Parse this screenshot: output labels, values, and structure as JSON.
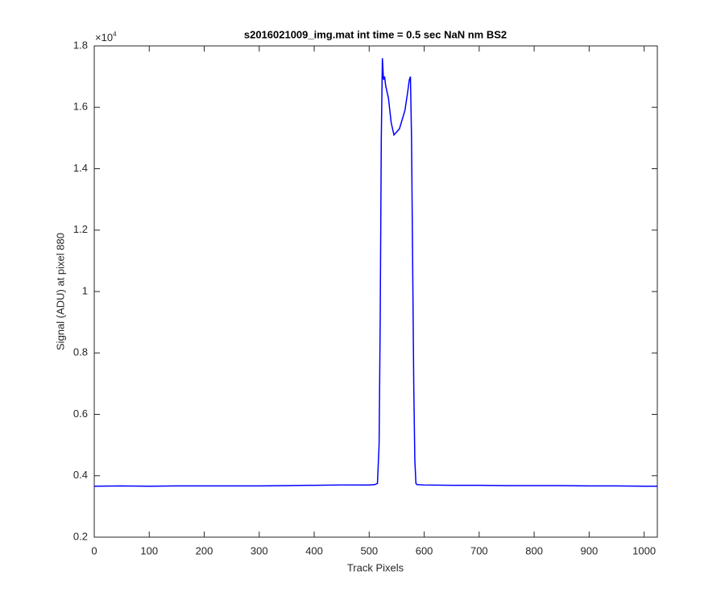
{
  "chart_data": {
    "type": "line",
    "title": "s2016021009_img.mat int time = 0.5 sec  NaN nm BS2",
    "xlabel": "Track Pixels",
    "ylabel": "Signal (ADU) at pixel 880",
    "y_multiplier": {
      "base": "×10",
      "exponent": "4"
    },
    "color": "#0000ff",
    "x": [
      0,
      50,
      100,
      150,
      200,
      250,
      300,
      350,
      400,
      450,
      500,
      510,
      515,
      518,
      520,
      522,
      524,
      526,
      528,
      530,
      535,
      540,
      545,
      550,
      555,
      560,
      565,
      570,
      573,
      575,
      577,
      579,
      581,
      583,
      585,
      587,
      600,
      650,
      700,
      750,
      800,
      850,
      900,
      950,
      1000,
      1024
    ],
    "values": [
      3660,
      3670,
      3660,
      3670,
      3670,
      3670,
      3670,
      3680,
      3690,
      3700,
      3700,
      3710,
      3750,
      5000,
      9000,
      15000,
      17600,
      16900,
      17000,
      16700,
      16300,
      15500,
      15100,
      15200,
      15300,
      15600,
      15900,
      16500,
      16900,
      17000,
      15000,
      11000,
      7000,
      4500,
      3750,
      3710,
      3700,
      3690,
      3690,
      3680,
      3680,
      3680,
      3670,
      3670,
      3660,
      3660
    ],
    "xlim": [
      0,
      1024
    ],
    "ylim": [
      2000,
      18000
    ],
    "xticks": [
      0,
      100,
      200,
      300,
      400,
      500,
      600,
      700,
      800,
      900,
      1000
    ],
    "yticks": [
      {
        "value": 2000,
        "label": "0.2"
      },
      {
        "value": 4000,
        "label": "0.4"
      },
      {
        "value": 6000,
        "label": "0.6"
      },
      {
        "value": 8000,
        "label": "0.8"
      },
      {
        "value": 10000,
        "label": "1"
      },
      {
        "value": 12000,
        "label": "1.2"
      },
      {
        "value": 14000,
        "label": "1.4"
      },
      {
        "value": 16000,
        "label": "1.6"
      },
      {
        "value": 18000,
        "label": "1.8"
      }
    ],
    "grid": false
  }
}
